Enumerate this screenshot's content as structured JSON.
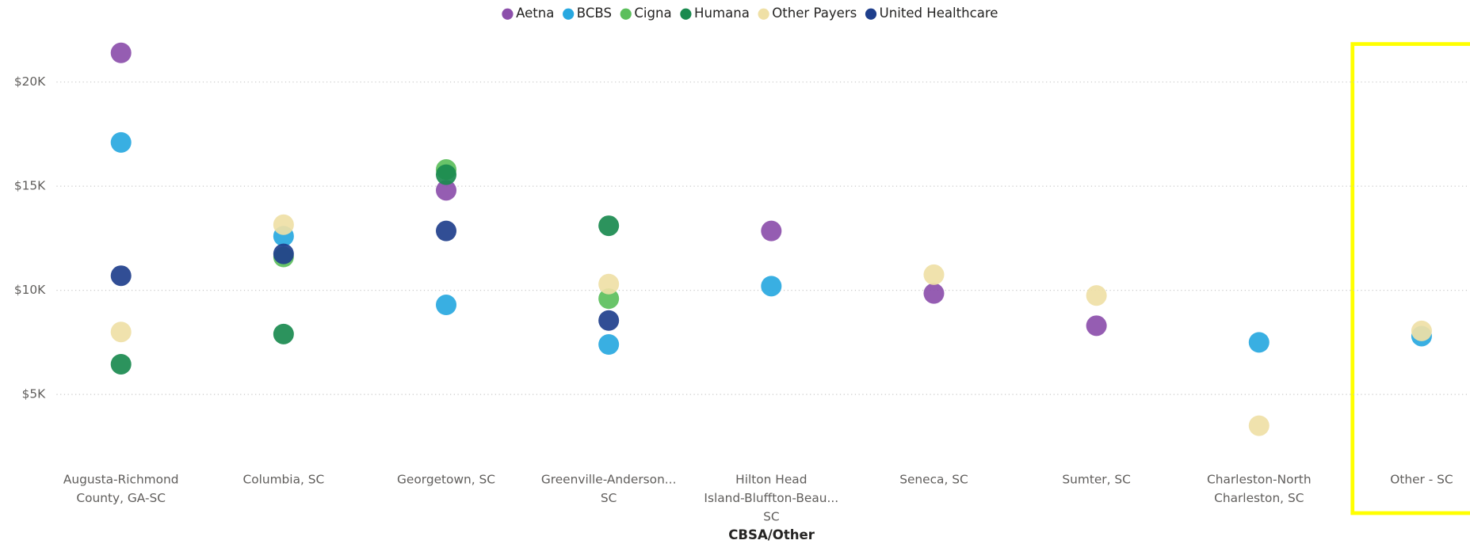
{
  "chart_data": {
    "type": "scatter",
    "x_label": "CBSA/Other",
    "categories": [
      "Augusta-Richmond County, GA-SC",
      "Columbia, SC",
      "Georgetown, SC",
      "Greenville-Anderson... SC",
      "Hilton Head Island-Bluffton-Beau... SC",
      "Seneca, SC",
      "Sumter, SC",
      "Charleston-North Charleston, SC",
      "Other - SC"
    ],
    "series": [
      {
        "name": "Aetna",
        "color": "#8c4fab",
        "values": [
          21400,
          null,
          14800,
          null,
          12850,
          9850,
          8300,
          null,
          null
        ]
      },
      {
        "name": "BCBS",
        "color": "#28a8e0",
        "values": [
          17100,
          12600,
          9300,
          7400,
          10200,
          null,
          null,
          7500,
          7800
        ]
      },
      {
        "name": "Cigna",
        "color": "#5cbf5c",
        "values": [
          null,
          11600,
          15800,
          9600,
          null,
          null,
          null,
          null,
          null
        ]
      },
      {
        "name": "Humana",
        "color": "#1a8a4f",
        "values": [
          6450,
          7900,
          15550,
          13100,
          null,
          null,
          null,
          null,
          null
        ]
      },
      {
        "name": "Other Payers",
        "color": "#efe0a6",
        "values": [
          8000,
          13150,
          null,
          10300,
          null,
          10750,
          9750,
          3500,
          8050
        ]
      },
      {
        "name": "United Healthcare",
        "color": "#1f3f8c",
        "values": [
          10700,
          11750,
          12850,
          8550,
          null,
          null,
          null,
          null,
          null
        ]
      }
    ],
    "ylim": [
      2000,
      22500
    ],
    "yticks": [
      {
        "value": 5000,
        "label": "$5K"
      },
      {
        "value": 10000,
        "label": "$10K"
      },
      {
        "value": 15000,
        "label": "$15K"
      },
      {
        "value": 20000,
        "label": "$20K"
      }
    ],
    "grid": true,
    "legend": "top"
  }
}
